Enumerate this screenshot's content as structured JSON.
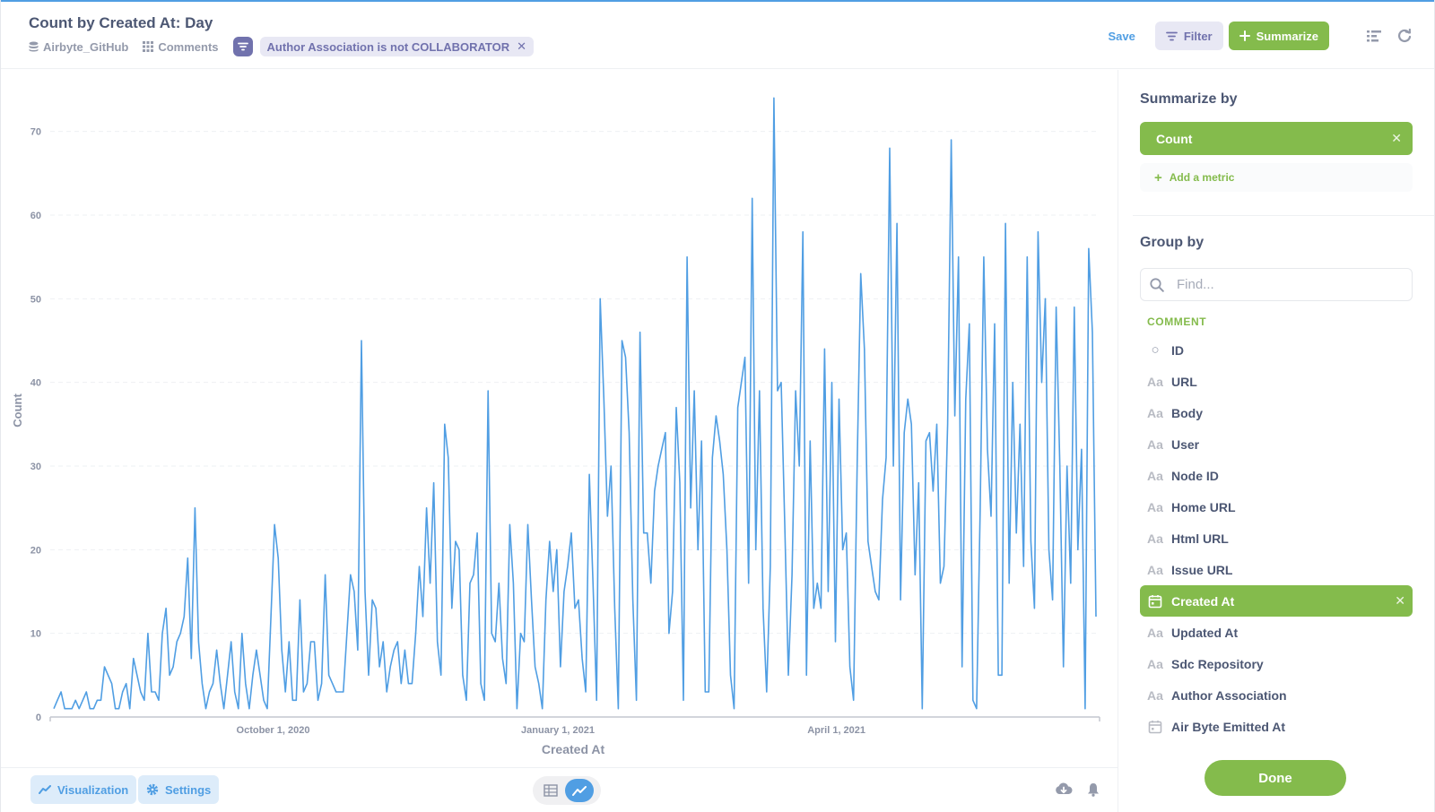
{
  "header": {
    "title": "Count by Created At: Day",
    "breadcrumbs": [
      {
        "label": "Airbyte_GitHub",
        "icon": "database-icon"
      },
      {
        "label": "Comments",
        "icon": "grid-icon"
      }
    ],
    "filter_pill": "Author Association is not COLLABORATOR",
    "filter_remove": "✕",
    "save_label": "Save",
    "filter_label": "Filter",
    "summarize_label": "Summarize"
  },
  "footer": {
    "visualization_label": "Visualization",
    "settings_label": "Settings"
  },
  "sidebar": {
    "summarize_title": "Summarize by",
    "metric": "Count",
    "metric_remove": "✕",
    "add_metric": "Add a metric",
    "group_title": "Group by",
    "search_placeholder": "Find...",
    "group_label": "COMMENT",
    "columns": [
      {
        "label": "ID",
        "icon": "circle-icon",
        "glyph": "○",
        "selected": false
      },
      {
        "label": "URL",
        "icon": "text-icon",
        "glyph": "Aa",
        "selected": false
      },
      {
        "label": "Body",
        "icon": "text-icon",
        "glyph": "Aa",
        "selected": false
      },
      {
        "label": "User",
        "icon": "text-icon",
        "glyph": "Aa",
        "selected": false
      },
      {
        "label": "Node ID",
        "icon": "text-icon",
        "glyph": "Aa",
        "selected": false
      },
      {
        "label": "Home URL",
        "icon": "text-icon",
        "glyph": "Aa",
        "selected": false
      },
      {
        "label": "Html URL",
        "icon": "text-icon",
        "glyph": "Aa",
        "selected": false
      },
      {
        "label": "Issue URL",
        "icon": "text-icon",
        "glyph": "Aa",
        "selected": false
      },
      {
        "label": "Created At",
        "icon": "calendar-icon",
        "glyph": "",
        "selected": true
      },
      {
        "label": "Updated At",
        "icon": "text-icon",
        "glyph": "Aa",
        "selected": false
      },
      {
        "label": "Sdc Repository",
        "icon": "text-icon",
        "glyph": "Aa",
        "selected": false
      },
      {
        "label": "Author Association",
        "icon": "text-icon",
        "glyph": "Aa",
        "selected": false
      },
      {
        "label": "Air Byte Emitted At",
        "icon": "calendar-icon",
        "glyph": "",
        "selected": false
      }
    ],
    "done_label": "Done"
  },
  "colors": {
    "accent": "#509ee3",
    "summarize_green": "#84bb4c",
    "filter_purple": "#7172ad",
    "text": "#4c5773"
  },
  "chart_data": {
    "type": "line",
    "title": "",
    "xlabel": "Created At",
    "ylabel": "Count",
    "ylim": [
      0,
      75
    ],
    "yticks": [
      0,
      10,
      20,
      30,
      40,
      50,
      60,
      70
    ],
    "xticks": [
      "October 1, 2020",
      "January 1, 2021",
      "April 1, 2021"
    ],
    "x_start": "2020-07-21",
    "x_end": "2021-06-25",
    "series": [
      {
        "name": "",
        "color": "#509ee3",
        "values": [
          1,
          2,
          3,
          1,
          1,
          1,
          2,
          1,
          2,
          3,
          1,
          1,
          2,
          2,
          6,
          5,
          4,
          1,
          1,
          3,
          4,
          1,
          7,
          5,
          3,
          2,
          10,
          3,
          3,
          2,
          10,
          13,
          5,
          6,
          9,
          10,
          12,
          19,
          7,
          25,
          9,
          4,
          1,
          3,
          4,
          8,
          4,
          1,
          5,
          9,
          3,
          1,
          10,
          4,
          1,
          5,
          8,
          5,
          2,
          1,
          12,
          23,
          19,
          8,
          3,
          9,
          2,
          2,
          14,
          3,
          4,
          9,
          9,
          2,
          4,
          17,
          5,
          4,
          3,
          3,
          3,
          10,
          17,
          15,
          8,
          45,
          15,
          5,
          14,
          13,
          6,
          9,
          3,
          6,
          8,
          9,
          4,
          8,
          4,
          4,
          10,
          18,
          12,
          25,
          16,
          28,
          9,
          5,
          35,
          31,
          13,
          21,
          20,
          5,
          2,
          16,
          17,
          22,
          4,
          2,
          39,
          10,
          9,
          16,
          7,
          4,
          23,
          16,
          1,
          10,
          9,
          23,
          14,
          6,
          4,
          1,
          14,
          21,
          15,
          20,
          6,
          15,
          18,
          22,
          13,
          14,
          7,
          3,
          29,
          16,
          2,
          50,
          38,
          24,
          30,
          13,
          1,
          45,
          43,
          34,
          14,
          2,
          46,
          22,
          22,
          16,
          27,
          30,
          32,
          34,
          10,
          15,
          37,
          28,
          2,
          55,
          25,
          39,
          20,
          33,
          3,
          3,
          31,
          36,
          33,
          29,
          20,
          5,
          1,
          37,
          40,
          43,
          16,
          62,
          20,
          39,
          13,
          3,
          18,
          74,
          39,
          40,
          23,
          5,
          17,
          39,
          30,
          58,
          5,
          33,
          13,
          16,
          13,
          44,
          15,
          40,
          9,
          38,
          20,
          22,
          6,
          2,
          30,
          53,
          44,
          21,
          18,
          15,
          14,
          26,
          31,
          68,
          30,
          59,
          14,
          34,
          38,
          35,
          17,
          28,
          1,
          33,
          34,
          27,
          35,
          16,
          18,
          35,
          69,
          36,
          55,
          6,
          38,
          47,
          2,
          1,
          25,
          55,
          32,
          24,
          47,
          5,
          5,
          59,
          16,
          40,
          22,
          35,
          18,
          55,
          21,
          13,
          58,
          40,
          50,
          20,
          14,
          49,
          30,
          6,
          30,
          16,
          49,
          20,
          32,
          1,
          56,
          46,
          12
        ]
      }
    ]
  }
}
